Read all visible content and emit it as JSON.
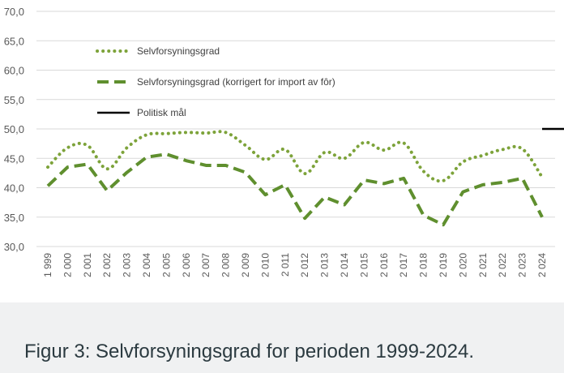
{
  "caption": "Figur 3: Selvforsyningsgrad for perioden 1999-2024.",
  "colors": {
    "series_dotted": "#7da33a",
    "series_dashed": "#5f8f2e",
    "target_line": "#000000",
    "grid": "#d9d9d9",
    "axis_text": "#595959",
    "caption_bg": "#f0f1f2",
    "caption_text": "#2b3a40"
  },
  "chart_data": {
    "type": "line",
    "title": "",
    "xlabel": "",
    "ylabel": "",
    "ylim": [
      30,
      70
    ],
    "yticks": [
      "30,0",
      "35,0",
      "40,0",
      "45,0",
      "50,0",
      "55,0",
      "60,0",
      "65,0",
      "70,0"
    ],
    "categories": [
      "1 999",
      "2 000",
      "2 001",
      "2 002",
      "2 003",
      "2 004",
      "2 005",
      "2 006",
      "2 007",
      "2 008",
      "2 009",
      "2 010",
      "2 011",
      "2 012",
      "2 013",
      "2 014",
      "2 015",
      "2 016",
      "2 017",
      "2 018",
      "2 019",
      "2 020",
      "2 021",
      "2 022",
      "2 023",
      "2 024"
    ],
    "grid": "horizontal",
    "legend_position": "top-left",
    "series": [
      {
        "name": "Selvforsyningsgrad",
        "style": "dotted",
        "values": [
          43.5,
          46.8,
          47.2,
          43.2,
          46.8,
          49.0,
          49.2,
          49.4,
          49.3,
          49.4,
          47.2,
          44.8,
          46.5,
          42.4,
          46.0,
          45.0,
          47.7,
          46.4,
          47.6,
          42.8,
          41.2,
          44.4,
          45.5,
          46.5,
          46.6,
          41.8
        ]
      },
      {
        "name": "Selvforsyningsgrad (korrigert for import av fôr)",
        "style": "dashed",
        "values": [
          40.3,
          43.5,
          44.0,
          39.5,
          42.6,
          45.2,
          45.7,
          44.6,
          43.8,
          43.8,
          42.6,
          38.8,
          40.5,
          34.8,
          38.4,
          37.1,
          41.3,
          40.7,
          41.6,
          35.3,
          33.7,
          39.3,
          40.5,
          40.9,
          41.6,
          35.0
        ]
      },
      {
        "name": "Politisk mål",
        "style": "solid",
        "values": [
          50,
          50,
          50,
          50,
          50,
          50,
          50,
          50,
          50,
          50,
          50,
          50,
          50,
          50,
          50,
          50,
          50,
          50,
          50,
          50,
          50,
          50,
          50,
          50,
          50,
          50
        ]
      }
    ]
  }
}
